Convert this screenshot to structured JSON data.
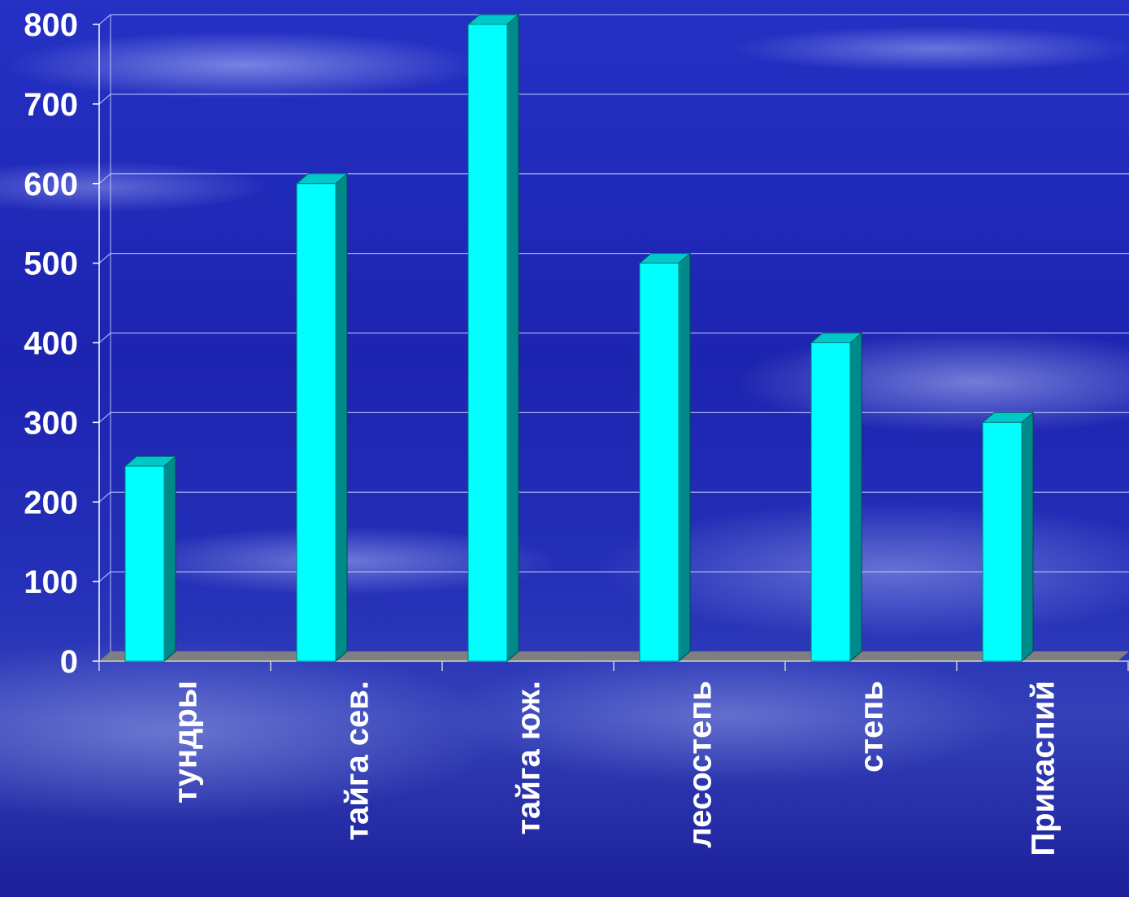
{
  "chart_data": {
    "type": "bar",
    "categories": [
      "тундры",
      "тайга сев.",
      "тайга юж.",
      "лесостепь",
      "степь",
      "Прикаспий"
    ],
    "values": [
      245,
      600,
      800,
      500,
      400,
      300
    ],
    "title": "",
    "xlabel": "",
    "ylabel": "",
    "ylim": [
      0,
      800
    ],
    "yticks": [
      "0",
      "100",
      "200",
      "300",
      "400",
      "500",
      "600",
      "700",
      "800"
    ],
    "grid": true,
    "legend": "none",
    "style": "3d-column"
  },
  "colors": {
    "bar_front": "#00ffff",
    "bar_side": "#008b8b",
    "bar_top": "#00c8c8",
    "floor": "#7f7f7f",
    "grid": "#c0c8ff",
    "text": "#ffffff"
  }
}
